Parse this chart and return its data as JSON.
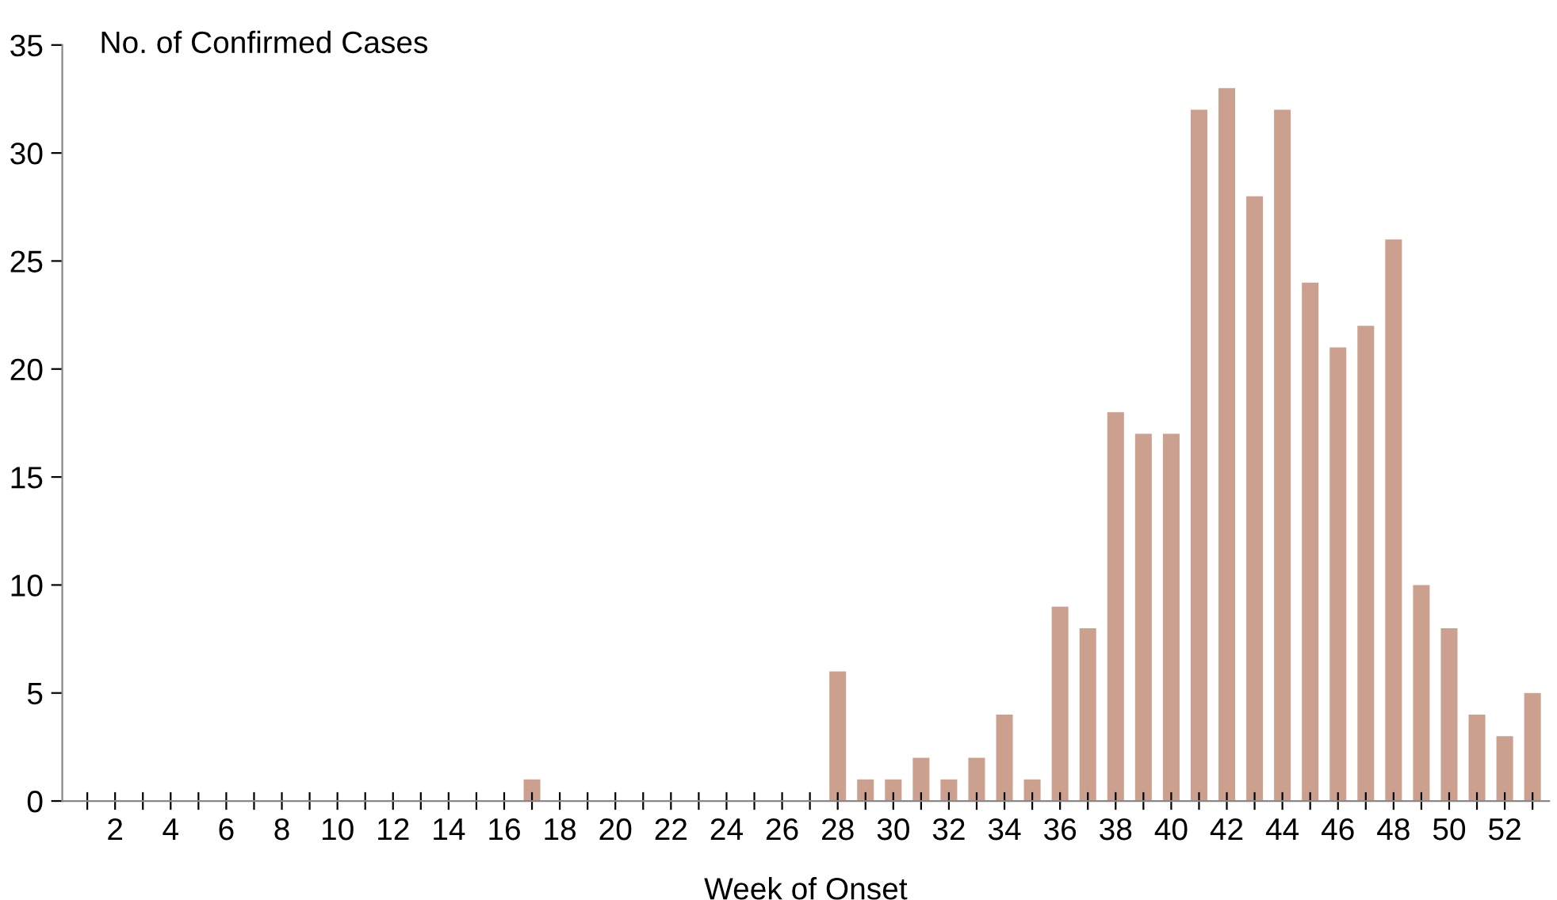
{
  "chart_data": {
    "type": "bar",
    "ylabel": "No. of Confirmed Cases",
    "xlabel": "Week of Onset",
    "categories": [
      null,
      "2",
      null,
      "4",
      null,
      "6",
      null,
      "8",
      null,
      "10",
      null,
      "12",
      null,
      "14",
      null,
      "16",
      null,
      "18",
      null,
      "20",
      null,
      "22",
      null,
      "24",
      null,
      "26",
      null,
      "28",
      null,
      "30",
      null,
      "32",
      null,
      "34",
      null,
      "36",
      null,
      "38",
      null,
      "40",
      null,
      "42",
      null,
      "44",
      null,
      "46",
      null,
      "48",
      null,
      "50",
      null,
      "52",
      null
    ],
    "values": [
      0,
      0,
      0,
      0,
      0,
      0,
      0,
      0,
      0,
      0,
      0,
      0,
      0,
      0,
      0,
      0,
      1,
      0,
      0,
      0,
      0,
      0,
      0,
      0,
      0,
      0,
      0,
      6,
      1,
      1,
      2,
      1,
      2,
      4,
      1,
      9,
      8,
      18,
      17,
      17,
      32,
      33,
      28,
      32,
      24,
      21,
      22,
      26,
      10,
      8,
      4,
      3,
      5
    ],
    "color": "#cca08f",
    "ylim": [
      0,
      35
    ],
    "yticks": [
      0,
      5,
      10,
      15,
      20,
      25,
      30,
      35
    ],
    "grid": false
  }
}
